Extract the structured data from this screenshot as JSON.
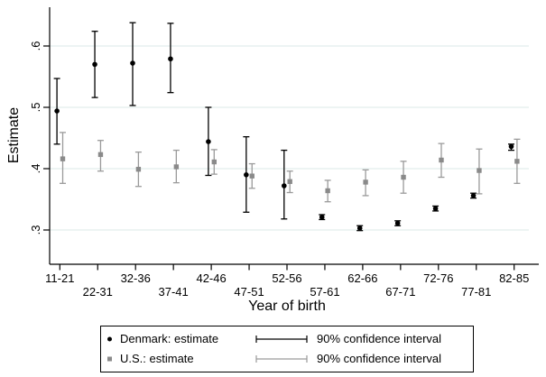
{
  "chart_data": {
    "type": "scatter",
    "subtype": "estimates-with-error-bars",
    "title": "",
    "xlabel": "Year of birth",
    "ylabel": "Estimate",
    "categories": [
      "11-21",
      "22-31",
      "32-36",
      "37-41",
      "42-46",
      "47-51",
      "52-56",
      "57-61",
      "62-66",
      "67-71",
      "72-76",
      "77-81",
      "82-85"
    ],
    "y_ticks": [
      0.3,
      0.4,
      0.5,
      0.6
    ],
    "y_tick_labels": [
      ".3",
      ".4",
      ".5",
      ".6"
    ],
    "ylim": [
      0.245,
      0.663
    ],
    "grid": true,
    "legend_position": "bottom",
    "confidence_level": "90%",
    "colors": {
      "grid": "#e2edec",
      "axis": "#000000",
      "background": "#ffffff"
    },
    "series": [
      {
        "key": "denmark",
        "name": "Denmark: estimate",
        "marker": "circle",
        "color": "#000000",
        "ci_color": "#000000",
        "estimates": [
          0.494,
          0.57,
          0.572,
          0.579,
          0.444,
          0.39,
          0.372,
          0.321,
          0.303,
          0.311,
          0.335,
          0.356,
          0.436
        ],
        "ci_low": [
          0.44,
          0.516,
          0.503,
          0.524,
          0.389,
          0.329,
          0.318,
          0.317,
          0.299,
          0.307,
          0.331,
          0.352,
          0.43
        ],
        "ci_high": [
          0.547,
          0.624,
          0.638,
          0.637,
          0.5,
          0.452,
          0.43,
          0.325,
          0.307,
          0.315,
          0.339,
          0.36,
          0.44
        ]
      },
      {
        "key": "us",
        "name": "U.S.: estimate",
        "marker": "square",
        "color": "#8a8a8a",
        "ci_color": "#9a9a9a",
        "estimates": [
          0.416,
          0.423,
          0.399,
          0.403,
          0.411,
          0.388,
          0.379,
          0.364,
          0.378,
          0.386,
          0.414,
          0.397,
          0.412
        ],
        "ci_low": [
          0.376,
          0.396,
          0.371,
          0.377,
          0.391,
          0.368,
          0.361,
          0.346,
          0.356,
          0.36,
          0.386,
          0.359,
          0.376
        ],
        "ci_high": [
          0.459,
          0.446,
          0.427,
          0.43,
          0.431,
          0.408,
          0.396,
          0.381,
          0.398,
          0.412,
          0.441,
          0.432,
          0.448
        ]
      }
    ]
  },
  "legend": {
    "rows": [
      {
        "label": "Denmark: estimate",
        "ci_label": "90% confidence interval"
      },
      {
        "label": "U.S.: estimate",
        "ci_label": "90% confidence interval"
      }
    ]
  }
}
